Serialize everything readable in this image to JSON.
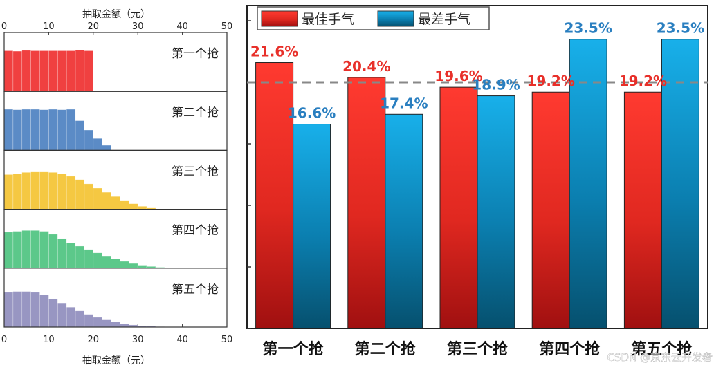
{
  "chart_data": [
    {
      "type": "bar",
      "subtype": "stacked-histograms",
      "xlabel": "抽取金额（元）",
      "xlim": [
        0,
        50
      ],
      "xticks": [
        0,
        10,
        20,
        30,
        40,
        50
      ],
      "bin_width": 2,
      "panels": [
        {
          "label": "第一个抢",
          "color": "#f04040",
          "values": [
            0.96,
            0.95,
            0.97,
            0.96,
            0.96,
            0.96,
            0.96,
            0.96,
            0.98,
            0.96
          ]
        },
        {
          "label": "第二个抢",
          "color": "#5b8bc6",
          "values": [
            0.97,
            0.96,
            0.97,
            0.97,
            0.96,
            0.97,
            0.96,
            0.97,
            0.7,
            0.48,
            0.28,
            0.12
          ]
        },
        {
          "label": "第三个抢",
          "color": "#f5c842",
          "values": [
            0.82,
            0.84,
            0.87,
            0.88,
            0.88,
            0.87,
            0.84,
            0.78,
            0.7,
            0.6,
            0.5,
            0.4,
            0.3,
            0.21,
            0.13,
            0.07,
            0.03
          ]
        },
        {
          "label": "第四个抢",
          "color": "#5cc88a",
          "values": [
            0.85,
            0.87,
            0.89,
            0.89,
            0.87,
            0.8,
            0.7,
            0.6,
            0.52,
            0.44,
            0.36,
            0.29,
            0.22,
            0.16,
            0.11,
            0.07,
            0.04,
            0.02,
            0.01
          ]
        },
        {
          "label": "第五个抢",
          "color": "#9896c2",
          "values": [
            0.82,
            0.84,
            0.84,
            0.82,
            0.76,
            0.67,
            0.57,
            0.47,
            0.38,
            0.3,
            0.23,
            0.17,
            0.12,
            0.08,
            0.05,
            0.03,
            0.02,
            0.01
          ]
        }
      ]
    },
    {
      "type": "bar",
      "categories": [
        "第一个抢",
        "第二个抢",
        "第三个抢",
        "第四个抢",
        "第五个抢"
      ],
      "series": [
        {
          "name": "最佳手气",
          "values": [
            21.6,
            20.4,
            19.6,
            19.2,
            19.2
          ],
          "color": "#e8302a"
        },
        {
          "name": "最差手气",
          "values": [
            16.6,
            17.4,
            18.9,
            23.5,
            23.5
          ],
          "color": "#1aa0d8"
        }
      ],
      "labels_best": [
        "21.6%",
        "20.4%",
        "19.6%",
        "19.2%",
        "19.2%"
      ],
      "labels_worst": [
        "16.6%",
        "17.4%",
        "18.9%",
        "23.5%",
        "23.5%"
      ],
      "reference_line": 20,
      "ylim": [
        0,
        25
      ],
      "legend_position": "top-left"
    }
  ],
  "watermark": "CSDN @京东云开发者"
}
